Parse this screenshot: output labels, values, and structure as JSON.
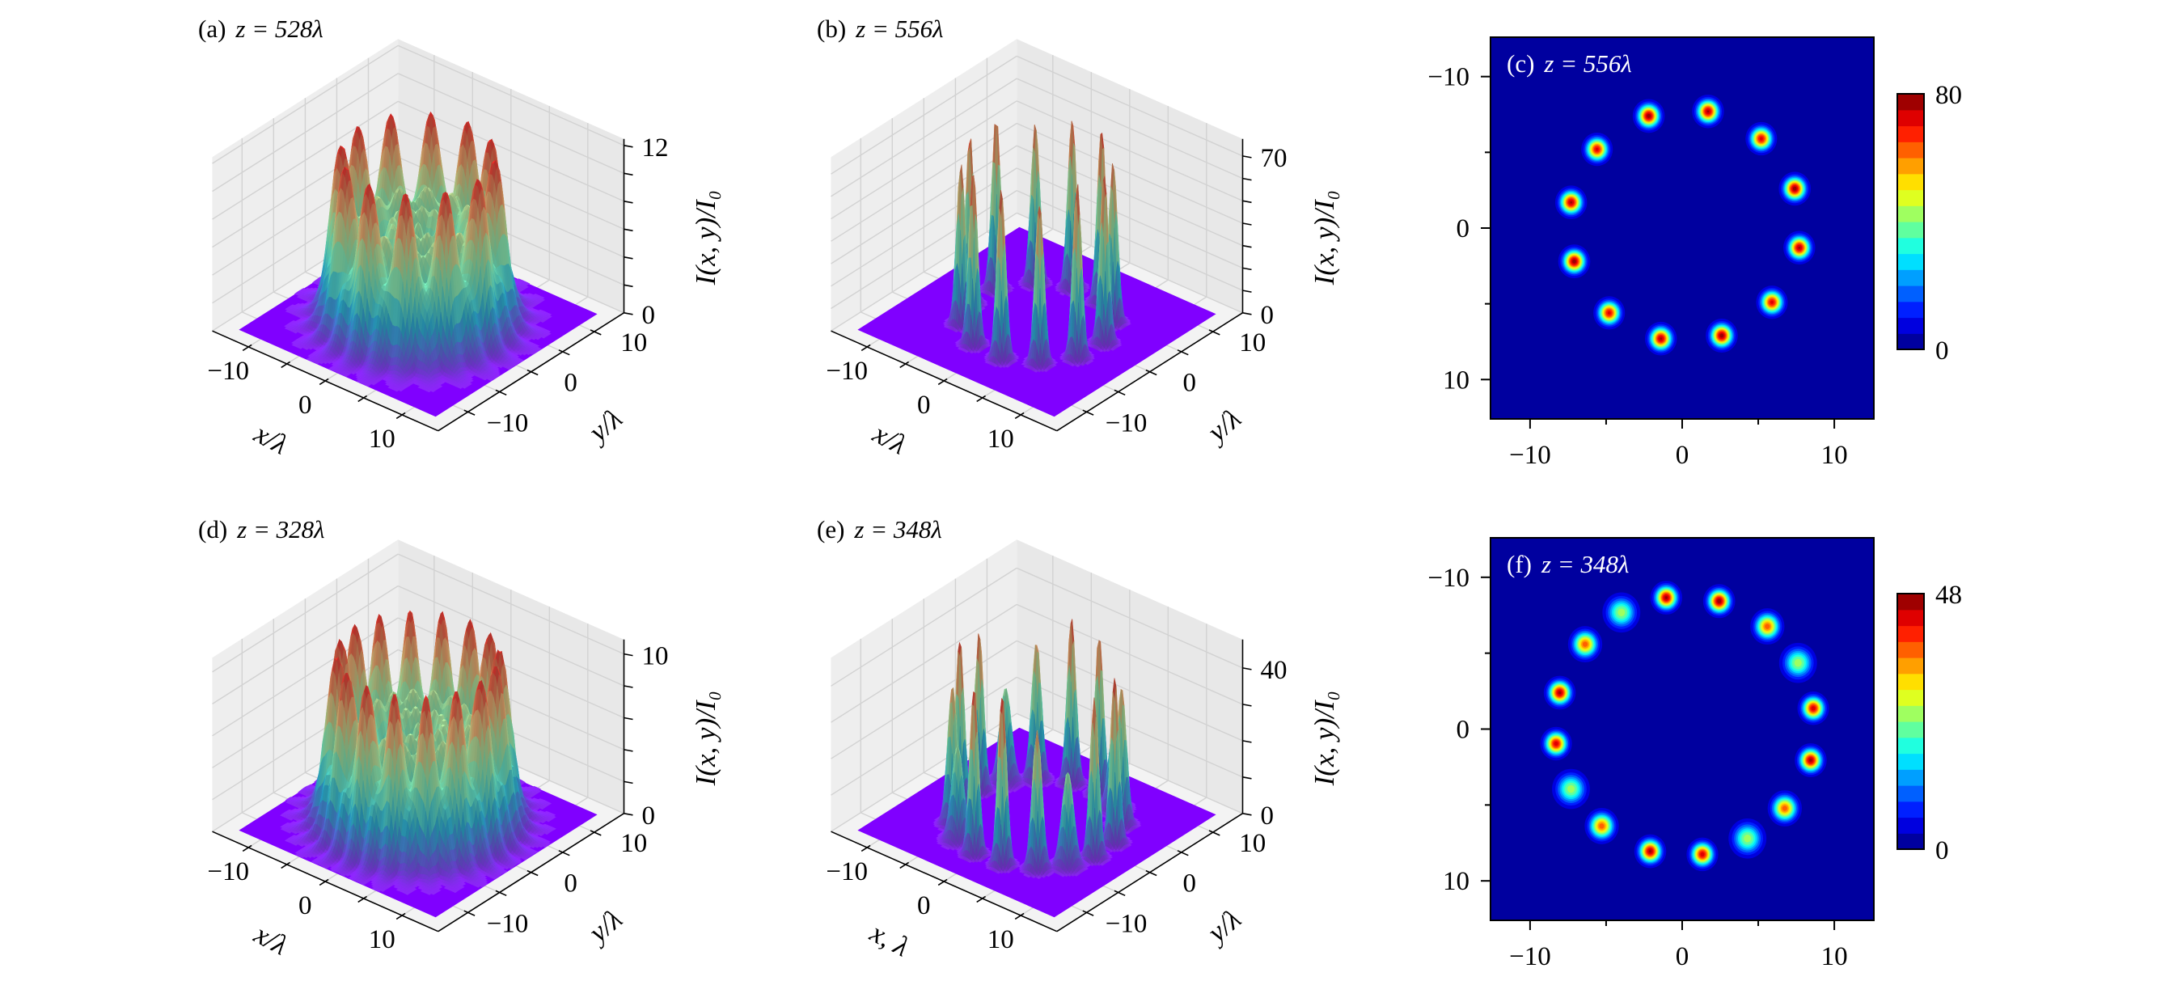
{
  "chart_data": [
    {
      "type": "surface",
      "title_label": "(a)",
      "title_eq": "z = 528λ",
      "xlabel": "x/λ",
      "ylabel": "y/λ",
      "zlabel": "I(x, y)/I₀",
      "xticks": [
        {
          "v": -10,
          "label": "−10"
        },
        {
          "v": 0,
          "label": "0"
        },
        {
          "v": 10,
          "label": "10"
        }
      ],
      "yticks": [
        {
          "v": -10,
          "label": "−10"
        },
        {
          "v": 0,
          "label": "0"
        },
        {
          "v": 10,
          "label": "10"
        }
      ],
      "zticks": [
        0,
        2,
        4,
        6,
        8,
        10,
        12
      ],
      "zlabeled": [
        {
          "v": 0,
          "label": "0"
        },
        {
          "v": 12,
          "label": "12"
        }
      ],
      "zlim": [
        0,
        12.46
      ],
      "surface_model": {
        "shape": "ring",
        "ring_radius": 9.2,
        "rim_peaks": 12,
        "max_intensity": 12.3
      }
    },
    {
      "type": "surface",
      "title_label": "(b)",
      "title_eq": "z = 556λ",
      "xlabel": "x/λ",
      "ylabel": "y/λ",
      "zlabel": "I(x, y)/I₀",
      "xticks": [
        {
          "v": -10,
          "label": "−10"
        },
        {
          "v": 0,
          "label": "0"
        },
        {
          "v": 10,
          "label": "10"
        }
      ],
      "yticks": [
        {
          "v": -10,
          "label": "−10"
        },
        {
          "v": 0,
          "label": "0"
        },
        {
          "v": 10,
          "label": "10"
        }
      ],
      "zticks": [
        0,
        10,
        20,
        30,
        40,
        50,
        60,
        70
      ],
      "zlabeled": [
        {
          "v": 0,
          "label": "0"
        },
        {
          "v": 70,
          "label": "70"
        }
      ],
      "zlim": [
        0,
        77.6
      ],
      "surface_model": {
        "shape": "spots",
        "peak_count": 12,
        "max_intensity": 80
      }
    },
    {
      "type": "heatmap",
      "title_label": "(c)",
      "title_eq": "z = 556λ",
      "xticks": [
        {
          "v": -10,
          "label": "−10"
        },
        {
          "v": 0,
          "label": "0"
        },
        {
          "v": 10,
          "label": "10"
        }
      ],
      "yticks": [
        {
          "v": -10,
          "label": "−10"
        },
        {
          "v": 0,
          "label": "0"
        },
        {
          "v": 10,
          "label": "10"
        }
      ],
      "xlim": [
        -12.6,
        12.6
      ],
      "ylim": [
        -12.6,
        12.6
      ],
      "y_inverted": true,
      "colormap": "jet",
      "levels": 16,
      "vmin": 0,
      "vmax": 80,
      "colorbar_labels": {
        "max": "80",
        "min": "0"
      },
      "spots": [
        {
          "x": -2.2,
          "y": -7.4,
          "peak": 78,
          "w": 0.45
        },
        {
          "x": 1.7,
          "y": -7.7,
          "peak": 76,
          "w": 0.45
        },
        {
          "x": 5.2,
          "y": -5.9,
          "peak": 72,
          "w": 0.45
        },
        {
          "x": 7.4,
          "y": -2.6,
          "peak": 78,
          "w": 0.45
        },
        {
          "x": 7.7,
          "y": 1.3,
          "peak": 76,
          "w": 0.45
        },
        {
          "x": 5.9,
          "y": 4.9,
          "peak": 72,
          "w": 0.45
        },
        {
          "x": 2.6,
          "y": 7.1,
          "peak": 78,
          "w": 0.45
        },
        {
          "x": -1.4,
          "y": 7.3,
          "peak": 76,
          "w": 0.45
        },
        {
          "x": -4.8,
          "y": 5.6,
          "peak": 72,
          "w": 0.45
        },
        {
          "x": -7.1,
          "y": 2.2,
          "peak": 78,
          "w": 0.45
        },
        {
          "x": -7.3,
          "y": -1.7,
          "peak": 76,
          "w": 0.45
        },
        {
          "x": -5.6,
          "y": -5.2,
          "peak": 72,
          "w": 0.45
        }
      ]
    },
    {
      "type": "surface",
      "title_label": "(d)",
      "title_eq": "z = 328λ",
      "xlabel": "x/λ",
      "ylabel": "y/λ",
      "zlabel": "I(x, y)/I₀",
      "xticks": [
        {
          "v": -10,
          "label": "−10"
        },
        {
          "v": 0,
          "label": "0"
        },
        {
          "v": 10,
          "label": "10"
        }
      ],
      "yticks": [
        {
          "v": -10,
          "label": "−10"
        },
        {
          "v": 0,
          "label": "0"
        },
        {
          "v": 10,
          "label": "10"
        }
      ],
      "zticks": [
        0,
        2,
        4,
        6,
        8,
        10
      ],
      "zlabeled": [
        {
          "v": 0,
          "label": "0"
        },
        {
          "v": 10,
          "label": "10"
        }
      ],
      "zlim": [
        0,
        10.9
      ],
      "surface_model": {
        "shape": "ring",
        "ring_radius": 9.6,
        "rim_peaks": 16,
        "max_intensity": 10.8
      }
    },
    {
      "type": "surface",
      "title_label": "(e)",
      "title_eq": "z = 348λ",
      "xlabel": "x, λ",
      "ylabel": "y/λ",
      "zlabel": "I(x, y)/I₀",
      "xticks": [
        {
          "v": -10,
          "label": "−10"
        },
        {
          "v": 0,
          "label": "0"
        },
        {
          "v": 10,
          "label": "10"
        }
      ],
      "yticks": [
        {
          "v": -10,
          "label": "−10"
        },
        {
          "v": 0,
          "label": "0"
        },
        {
          "v": 10,
          "label": "10"
        }
      ],
      "zticks": [
        0,
        10,
        20,
        30,
        40
      ],
      "zlabeled": [
        {
          "v": 0,
          "label": "0"
        },
        {
          "v": 40,
          "label": "40"
        }
      ],
      "zlim": [
        0,
        47.8
      ],
      "surface_model": {
        "shape": "spots",
        "peak_count": 16,
        "max_intensity": 48
      }
    },
    {
      "type": "heatmap",
      "title_label": "(f)",
      "title_eq": "z = 348λ",
      "xticks": [
        {
          "v": -10,
          "label": "−10"
        },
        {
          "v": 0,
          "label": "0"
        },
        {
          "v": 10,
          "label": "10"
        }
      ],
      "yticks": [
        {
          "v": -10,
          "label": "−10"
        },
        {
          "v": 0,
          "label": "0"
        },
        {
          "v": 10,
          "label": "10"
        }
      ],
      "xlim": [
        -12.6,
        12.6
      ],
      "ylim": [
        -12.6,
        12.6
      ],
      "y_inverted": true,
      "colormap": "jet",
      "levels": 16,
      "vmin": 0,
      "vmax": 48,
      "colorbar_labels": {
        "max": "48",
        "min": "0"
      },
      "spots": [
        {
          "x": -1.05,
          "y": -8.66,
          "peak": 46,
          "w": 0.45
        },
        {
          "x": 2.43,
          "y": -8.43,
          "peak": 47,
          "w": 0.45
        },
        {
          "x": 5.6,
          "y": -6.76,
          "peak": 38,
          "w": 0.5
        },
        {
          "x": 7.62,
          "y": -4.36,
          "peak": 26,
          "w": 0.6
        },
        {
          "x": 8.62,
          "y": -1.37,
          "peak": 44,
          "w": 0.45
        },
        {
          "x": 8.45,
          "y": 2.05,
          "peak": 46,
          "w": 0.45
        },
        {
          "x": 6.74,
          "y": 5.22,
          "peak": 38,
          "w": 0.5
        },
        {
          "x": 4.29,
          "y": 7.21,
          "peak": 26,
          "w": 0.6
        },
        {
          "x": 1.33,
          "y": 8.25,
          "peak": 44,
          "w": 0.45
        },
        {
          "x": -2.1,
          "y": 8.05,
          "peak": 46,
          "w": 0.45
        },
        {
          "x": -5.29,
          "y": 6.39,
          "peak": 38,
          "w": 0.5
        },
        {
          "x": -7.31,
          "y": 3.95,
          "peak": 26,
          "w": 0.6
        },
        {
          "x": -8.29,
          "y": 0.96,
          "peak": 44,
          "w": 0.45
        },
        {
          "x": -8.05,
          "y": -2.4,
          "peak": 46,
          "w": 0.45
        },
        {
          "x": -6.38,
          "y": -5.59,
          "peak": 38,
          "w": 0.5
        },
        {
          "x": -4.0,
          "y": -7.68,
          "peak": 26,
          "w": 0.6
        }
      ]
    }
  ]
}
